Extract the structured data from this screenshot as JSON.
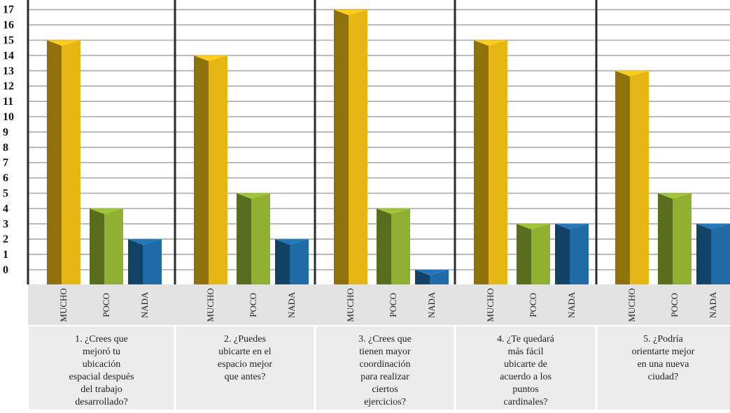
{
  "chart_data": {
    "type": "bar",
    "title": "",
    "xlabel": "",
    "ylabel": "",
    "ylim": [
      0,
      17
    ],
    "yticks": [
      "0",
      "1",
      "2",
      "3",
      "4",
      "5",
      "6",
      "7",
      "8",
      "9",
      "10",
      "11",
      "12",
      "13",
      "14",
      "15",
      "16",
      "17"
    ],
    "categories": [
      "MUCHO",
      "POCO",
      "NADA"
    ],
    "colors": {
      "MUCHO": "#e6b714",
      "POCO": "#8fb031",
      "NADA": "#1e6ba6"
    },
    "grid": true,
    "legend": "none",
    "groups": [
      {
        "question": "1. ¿Crees que mejoró tu ubicación espacial después del trabajo desarrollado?",
        "lines": [
          "1. ¿Crees que",
          "mejoró tu",
          "ubicación",
          "espacial después",
          "del trabajo",
          "desarrollado?"
        ],
        "values": [
          15,
          4,
          2
        ]
      },
      {
        "question": "2. ¿Puedes ubicarte en el espacio mejor que antes?",
        "lines": [
          "2. ¿Puedes",
          "ubicarte en el",
          "espacio mejor",
          "que antes?"
        ],
        "values": [
          14,
          5,
          2
        ]
      },
      {
        "question": "3. ¿Crees que tienen mayor coordinación para realizar ciertos ejercicios?",
        "lines": [
          "3. ¿Crees que",
          "tienen mayor",
          "coordinación",
          "para realizar",
          "ciertos",
          "ejercicios?"
        ],
        "values": [
          17,
          4,
          0
        ]
      },
      {
        "question": "4. ¿Te quedará más fácil ubicarte de acuerdo a los puntos cardinales?",
        "lines": [
          "4. ¿Te quedará",
          "más fácil",
          "ubicarte de",
          "acuerdo a los",
          "puntos",
          "cardinales?"
        ],
        "values": [
          15,
          3,
          3
        ]
      },
      {
        "question": "5. ¿Podría orientarte mejor en una nueva ciudad?",
        "lines": [
          "5. ¿Podría",
          "orientarte mejor",
          "en una nueva",
          "ciudad?"
        ],
        "values": [
          13,
          5,
          3
        ]
      }
    ]
  }
}
